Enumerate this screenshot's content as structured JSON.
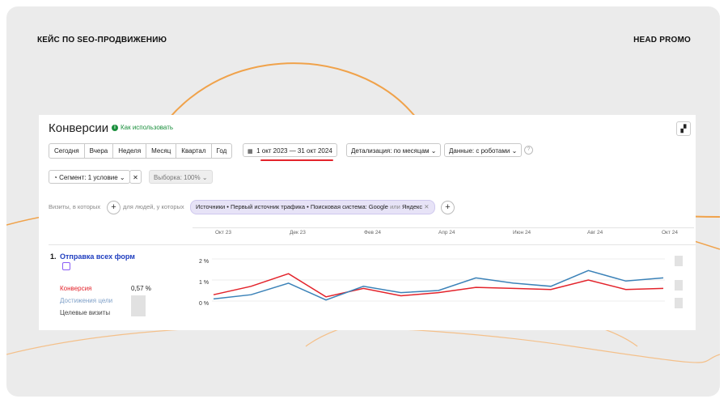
{
  "header": {
    "left": "КЕЙС ПО SEO-ПРОДВИЖЕНИЮ",
    "right": "HEAD PROMO"
  },
  "colors": {
    "bg": "#ebebeb",
    "accent": "#f0a24a",
    "red_line": "#e3232b",
    "blue_line": "#3b82b8"
  },
  "report": {
    "title": "Конверсии",
    "howto": "Как использовать",
    "periods": [
      "Сегодня",
      "Вчера",
      "Неделя",
      "Месяц",
      "Квартал",
      "Год"
    ],
    "date_range": "1 окт 2023 — 31 окт 2024",
    "detail": "Детализация: по месяцам",
    "data": "Данные: с роботами",
    "segment": "Сегмент: 1 условие",
    "sample": "Выборка: 100%",
    "visits_label": "Визиты, в которых",
    "people_label": "для людей, у которых",
    "filter_chip": "Источники • Первый источник трафика • Поисковая система: Google",
    "filter_or": "или",
    "filter_chip_end": "Яндекс"
  },
  "goal": {
    "number": "1.",
    "name": "Отправка всех форм",
    "metrics": [
      "Конверсия",
      "Достижения цели",
      "Целевые визиты"
    ],
    "conversion_value": "0,57 %"
  },
  "chart_data": {
    "type": "line",
    "x": [
      "Окт 23",
      "Ноя 23",
      "Дек 23",
      "Янв 24",
      "Фев 24",
      "Мар 24",
      "Апр 24",
      "Май 24",
      "Июн 24",
      "Июл 24",
      "Авг 24",
      "Сен 24",
      "Окт 24"
    ],
    "x_tick_labels": [
      "Окт 23",
      "Дек 23",
      "Фев 24",
      "Апр 24",
      "Июн 24",
      "Авг 24",
      "Окт 24"
    ],
    "y_tick_labels": [
      "2 %",
      "1 %",
      "0 %"
    ],
    "ylim": [
      0,
      2
    ],
    "series": [
      {
        "name": "Конверсия",
        "color": "#e3232b",
        "values": [
          0.3,
          0.7,
          1.3,
          0.2,
          0.6,
          0.25,
          0.4,
          0.65,
          0.6,
          0.55,
          1.0,
          0.55,
          0.6
        ]
      },
      {
        "color": "#3b82b8",
        "values": [
          0.1,
          0.3,
          0.85,
          0.05,
          0.7,
          0.4,
          0.5,
          1.1,
          0.85,
          0.7,
          1.45,
          0.95,
          1.1
        ]
      }
    ]
  }
}
